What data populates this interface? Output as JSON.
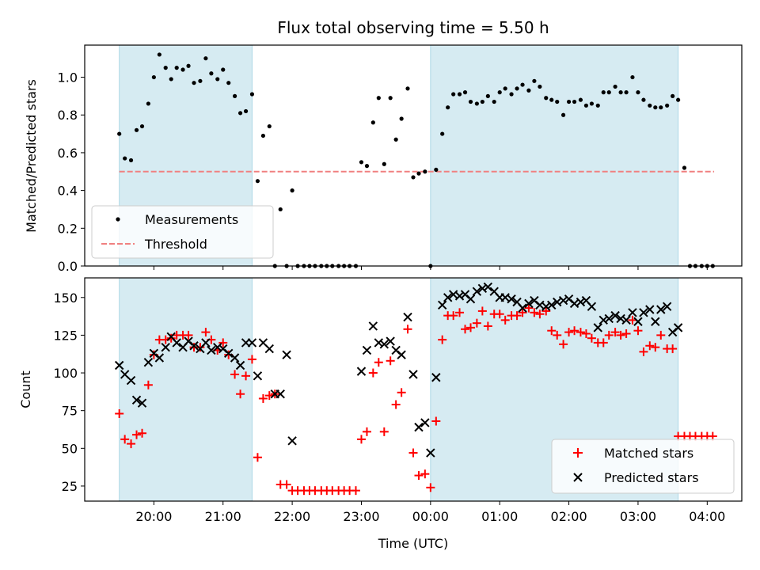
{
  "title": "Flux total observing time = 5.50 h",
  "colors": {
    "shade": "#add8e6",
    "threshold": "#f08080",
    "matched": "#ff0000",
    "predicted": "#000000",
    "measurement": "#000000"
  },
  "chart_data": [
    {
      "type": "scatter",
      "id": "ratio",
      "ylabel": "Matched/Predicted stars",
      "xlabel": "",
      "x_unit": "hours (UTC, 24 = 00:00 next day)",
      "xlim": [
        19.0,
        28.5
      ],
      "ylim": [
        0.0,
        1.17
      ],
      "yticks": [
        0.0,
        0.2,
        0.4,
        0.6,
        0.8,
        1.0
      ],
      "ytick_labels": [
        "0.0",
        "0.2",
        "0.4",
        "0.6",
        "0.8",
        "1.0"
      ],
      "shaded_spans": [
        [
          19.5,
          21.42
        ],
        [
          24.0,
          27.58
        ]
      ],
      "threshold": {
        "name": "Threshold",
        "y": 0.5,
        "x_range": [
          19.5,
          28.1
        ]
      },
      "legend": {
        "placement": "lower-left",
        "entries": [
          "Measurements",
          "Threshold"
        ]
      },
      "series": [
        {
          "name": "Measurements",
          "x": [
            19.5,
            19.58,
            19.67,
            19.75,
            19.83,
            19.92,
            20.0,
            20.08,
            20.17,
            20.25,
            20.33,
            20.42,
            20.5,
            20.58,
            20.67,
            20.75,
            20.83,
            20.92,
            21.0,
            21.08,
            21.17,
            21.25,
            21.33,
            21.42,
            21.5,
            21.58,
            21.67,
            21.75,
            21.83,
            21.92,
            22.0,
            22.08,
            22.17,
            22.25,
            22.33,
            22.42,
            22.5,
            22.58,
            22.67,
            22.75,
            22.83,
            22.92,
            23.0,
            23.08,
            23.17,
            23.25,
            23.33,
            23.42,
            23.5,
            23.58,
            23.67,
            23.75,
            23.83,
            23.92,
            24.0,
            24.08,
            24.17,
            24.25,
            24.33,
            24.42,
            24.5,
            24.58,
            24.67,
            24.75,
            24.83,
            24.92,
            25.0,
            25.08,
            25.17,
            25.25,
            25.33,
            25.42,
            25.5,
            25.58,
            25.67,
            25.75,
            25.83,
            25.92,
            26.0,
            26.08,
            26.17,
            26.25,
            26.33,
            26.42,
            26.5,
            26.58,
            26.67,
            26.75,
            26.83,
            26.92,
            27.0,
            27.08,
            27.17,
            27.25,
            27.33,
            27.42,
            27.5,
            27.58,
            27.67,
            27.75,
            27.83,
            27.92,
            28.0,
            28.08
          ],
          "y": [
            0.7,
            0.57,
            0.56,
            0.72,
            0.74,
            0.86,
            1.0,
            1.12,
            1.05,
            0.99,
            1.05,
            1.04,
            1.06,
            0.97,
            0.98,
            1.1,
            1.02,
            0.99,
            1.04,
            0.97,
            0.9,
            0.81,
            0.82,
            0.91,
            0.45,
            0.69,
            0.74,
            0.0,
            0.3,
            0.0,
            0.4,
            0.0,
            0.0,
            0.0,
            0.0,
            0.0,
            0.0,
            0.0,
            0.0,
            0.0,
            0.0,
            0.0,
            0.55,
            0.53,
            0.76,
            0.89,
            0.54,
            0.89,
            0.67,
            0.78,
            0.94,
            0.47,
            0.49,
            0.5,
            0.0,
            0.51,
            0.7,
            0.84,
            0.91,
            0.91,
            0.92,
            0.87,
            0.86,
            0.87,
            0.9,
            0.87,
            0.92,
            0.94,
            0.91,
            0.94,
            0.96,
            0.93,
            0.98,
            0.95,
            0.89,
            0.88,
            0.87,
            0.8,
            0.87,
            0.87,
            0.88,
            0.85,
            0.86,
            0.85,
            0.92,
            0.92,
            0.95,
            0.92,
            0.92,
            1.0,
            0.92,
            0.88,
            0.85,
            0.84,
            0.84,
            0.85,
            0.9,
            0.88,
            0.52,
            0.0,
            0.0,
            0.0,
            0.0,
            0.0
          ]
        }
      ]
    },
    {
      "type": "scatter",
      "id": "counts",
      "ylabel": "Count",
      "xlabel": "Time (UTC)",
      "x_unit": "hours (UTC, 24 = 00:00 next day)",
      "xlim": [
        19.0,
        28.5
      ],
      "ylim": [
        15,
        163
      ],
      "xticks": [
        20,
        21,
        22,
        23,
        24,
        25,
        26,
        27,
        28
      ],
      "xtick_labels": [
        "20:00",
        "21:00",
        "22:00",
        "23:00",
        "00:00",
        "01:00",
        "02:00",
        "03:00",
        "04:00"
      ],
      "yticks": [
        25,
        50,
        75,
        100,
        125,
        150
      ],
      "ytick_labels": [
        "25",
        "50",
        "75",
        "100",
        "125",
        "150"
      ],
      "shaded_spans": [
        [
          19.5,
          21.42
        ],
        [
          24.0,
          27.58
        ]
      ],
      "legend": {
        "placement": "lower-right",
        "entries": [
          "Matched stars",
          "Predicted stars"
        ]
      },
      "series": [
        {
          "name": "Matched stars",
          "marker": "plus",
          "x": [
            19.5,
            19.58,
            19.67,
            19.75,
            19.83,
            19.92,
            20.0,
            20.08,
            20.17,
            20.25,
            20.33,
            20.42,
            20.5,
            20.58,
            20.67,
            20.75,
            20.83,
            20.92,
            21.0,
            21.08,
            21.17,
            21.25,
            21.33,
            21.42,
            21.5,
            21.58,
            21.67,
            21.75,
            21.83,
            21.92,
            22.0,
            22.08,
            22.17,
            22.25,
            22.33,
            22.42,
            22.5,
            22.58,
            22.67,
            22.75,
            22.83,
            22.92,
            23.0,
            23.08,
            23.17,
            23.25,
            23.33,
            23.42,
            23.5,
            23.58,
            23.67,
            23.75,
            23.83,
            23.92,
            24.0,
            24.08,
            24.17,
            24.25,
            24.33,
            24.42,
            24.5,
            24.58,
            24.67,
            24.75,
            24.83,
            24.92,
            25.0,
            25.08,
            25.17,
            25.25,
            25.33,
            25.42,
            25.5,
            25.58,
            25.67,
            25.75,
            25.83,
            25.92,
            26.0,
            26.08,
            26.17,
            26.25,
            26.33,
            26.42,
            26.5,
            26.58,
            26.67,
            26.75,
            26.83,
            26.92,
            27.0,
            27.08,
            27.17,
            27.25,
            27.33,
            27.42,
            27.5,
            27.58,
            27.67,
            27.75,
            27.83,
            27.92,
            28.0,
            28.08
          ],
          "y": [
            73,
            56,
            53,
            59,
            60,
            92,
            112,
            122,
            122,
            123,
            125,
            125,
            125,
            117,
            117,
            127,
            122,
            115,
            120,
            112,
            99,
            86,
            98,
            109,
            44,
            83,
            85,
            86,
            26,
            26,
            22,
            22,
            22,
            22,
            22,
            22,
            22,
            22,
            22,
            22,
            22,
            22,
            56,
            61,
            100,
            107,
            61,
            108,
            79,
            87,
            129,
            47,
            32,
            33,
            24,
            68,
            122,
            138,
            138,
            140,
            129,
            130,
            133,
            141,
            131,
            139,
            139,
            135,
            138,
            138,
            140,
            143,
            140,
            139,
            141,
            128,
            125,
            119,
            127,
            128,
            127,
            126,
            123,
            120,
            120,
            125,
            127,
            125,
            126,
            135,
            128,
            114,
            118,
            117,
            125,
            116,
            116,
            58,
            58,
            58,
            58,
            58,
            58,
            58
          ]
        },
        {
          "name": "Predicted stars",
          "marker": "x",
          "x": [
            19.5,
            19.58,
            19.67,
            19.75,
            19.83,
            19.92,
            20.0,
            20.08,
            20.17,
            20.25,
            20.33,
            20.42,
            20.5,
            20.58,
            20.67,
            20.75,
            20.83,
            20.92,
            21.0,
            21.08,
            21.17,
            21.25,
            21.33,
            21.42,
            21.5,
            21.58,
            21.67,
            21.75,
            21.83,
            23.0,
            23.08,
            23.17,
            23.25,
            23.33,
            23.42,
            23.5,
            23.58,
            23.67,
            23.75,
            23.83,
            23.92,
            24.0,
            24.08,
            24.17,
            24.25,
            24.33,
            24.42,
            24.5,
            24.58,
            24.67,
            24.75,
            24.83,
            24.92,
            25.0,
            25.08,
            25.17,
            25.25,
            25.33,
            25.42,
            25.5,
            25.58,
            25.67,
            25.75,
            25.83,
            25.92,
            26.0,
            26.08,
            26.17,
            26.25,
            26.33,
            26.42,
            26.5,
            26.58,
            26.67,
            26.75,
            26.83,
            26.92,
            27.0,
            27.08,
            27.17,
            27.25,
            27.33,
            27.42,
            27.5,
            27.58,
            21.92,
            22.0
          ],
          "y": [
            105,
            99,
            95,
            82,
            80,
            107,
            113,
            110,
            117,
            124,
            120,
            117,
            121,
            118,
            116,
            120,
            115,
            117,
            116,
            113,
            110,
            105,
            120,
            120,
            98,
            120,
            116,
            86,
            86,
            101,
            115,
            131,
            120,
            119,
            121,
            115,
            112,
            137,
            99,
            64,
            67,
            47,
            97,
            145,
            150,
            152,
            151,
            152,
            149,
            154,
            156,
            157,
            154,
            150,
            150,
            149,
            147,
            143,
            146,
            148,
            145,
            144,
            145,
            147,
            148,
            149,
            146,
            147,
            148,
            144,
            130,
            135,
            136,
            138,
            136,
            135,
            140,
            134,
            140,
            142,
            134,
            142,
            144,
            127,
            130,
            112,
            55
          ]
        }
      ]
    }
  ]
}
